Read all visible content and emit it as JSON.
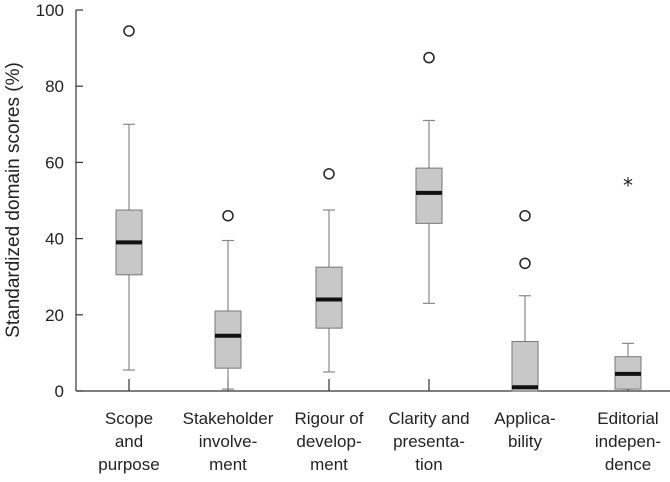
{
  "chart_data": {
    "type": "boxplot",
    "title": "",
    "xlabel": "",
    "ylabel": "Standardized domain scores (%)",
    "ylim": [
      0,
      100
    ],
    "yticks": [
      0,
      20,
      40,
      60,
      80,
      100
    ],
    "grid": false,
    "series": [
      {
        "name": "Scope and purpose",
        "label_lines": [
          "Scope",
          "and",
          "purpose"
        ],
        "whisker_low": 5.5,
        "q1": 30.5,
        "median": 39,
        "q3": 47.5,
        "whisker_high": 70,
        "outliers": [
          94.5
        ],
        "extremes": []
      },
      {
        "name": "Stakeholder involvement",
        "label_lines": [
          "Stakeholder",
          "involve-",
          "ment"
        ],
        "whisker_low": 0.5,
        "q1": 6,
        "median": 14.5,
        "q3": 21,
        "whisker_high": 39.5,
        "outliers": [
          46
        ],
        "extremes": []
      },
      {
        "name": "Rigour of development",
        "label_lines": [
          "Rigour of",
          "develop-",
          "ment"
        ],
        "whisker_low": 5,
        "q1": 16.5,
        "median": 24,
        "q3": 32.5,
        "whisker_high": 47.5,
        "outliers": [
          57
        ],
        "extremes": []
      },
      {
        "name": "Clarity and presentation",
        "label_lines": [
          "Clarity and",
          "presenta-",
          "tion"
        ],
        "whisker_low": 23,
        "q1": 44,
        "median": 52,
        "q3": 58.5,
        "whisker_high": 71,
        "outliers": [
          87.5
        ],
        "extremes": []
      },
      {
        "name": "Applicability",
        "label_lines": [
          "Applica-",
          "bility"
        ],
        "whisker_low": 0,
        "q1": 0,
        "median": 1,
        "q3": 13,
        "whisker_high": 25,
        "outliers": [
          46,
          33.5
        ],
        "extremes": []
      },
      {
        "name": "Editorial independence",
        "label_lines": [
          "Editorial",
          "indepen-",
          "dence"
        ],
        "whisker_low": 0.5,
        "q1": 0.5,
        "median": 4.5,
        "q3": 9,
        "whisker_high": 12.5,
        "outliers": [],
        "extremes": [
          54.5
        ]
      }
    ]
  }
}
